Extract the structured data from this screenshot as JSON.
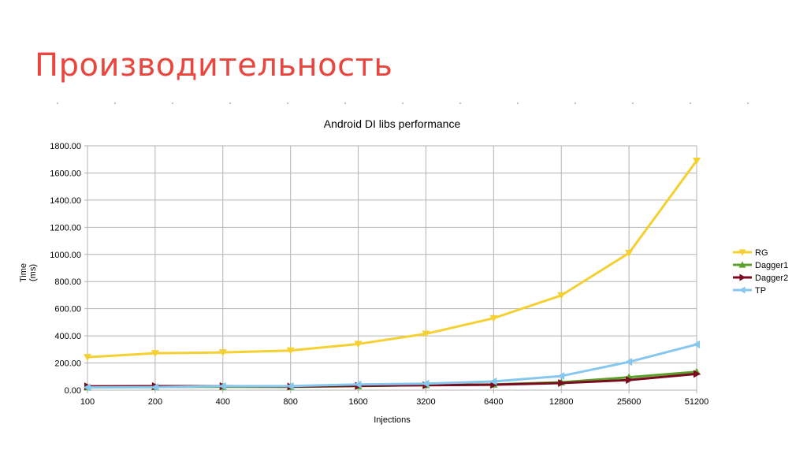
{
  "slide": {
    "title": "Производительность"
  },
  "chart_data": {
    "type": "line",
    "title": "Android DI libs performance",
    "xlabel": "Injections",
    "ylabel_line1": "Time",
    "ylabel_line2": "(ms)",
    "categories": [
      "100",
      "200",
      "400",
      "800",
      "1600",
      "3200",
      "6400",
      "12800",
      "25600",
      "51200"
    ],
    "ylim": [
      0,
      1800
    ],
    "yticks": [
      "0.00",
      "200.00",
      "400.00",
      "600.00",
      "800.00",
      "1000.00",
      "1200.00",
      "1400.00",
      "1600.00",
      "1800.00"
    ],
    "grid": true,
    "legend_position": "right",
    "series": [
      {
        "name": "RG",
        "color": "#f5d033",
        "marker": "triangle-down",
        "values": [
          243,
          272,
          278,
          292,
          340,
          415,
          530,
          698,
          1010,
          1690
        ]
      },
      {
        "name": "Dagger1",
        "color": "#5aa12c",
        "marker": "triangle-up",
        "values": [
          22,
          24,
          25,
          24,
          30,
          38,
          42,
          58,
          95,
          135
        ]
      },
      {
        "name": "Dagger2",
        "color": "#7b0c1f",
        "marker": "triangle-right",
        "values": [
          28,
          30,
          30,
          27,
          32,
          36,
          40,
          52,
          75,
          120
        ]
      },
      {
        "name": "TP",
        "color": "#86c7ee",
        "marker": "triangle-left",
        "values": [
          20,
          22,
          30,
          30,
          42,
          48,
          64,
          104,
          208,
          337
        ]
      }
    ]
  }
}
